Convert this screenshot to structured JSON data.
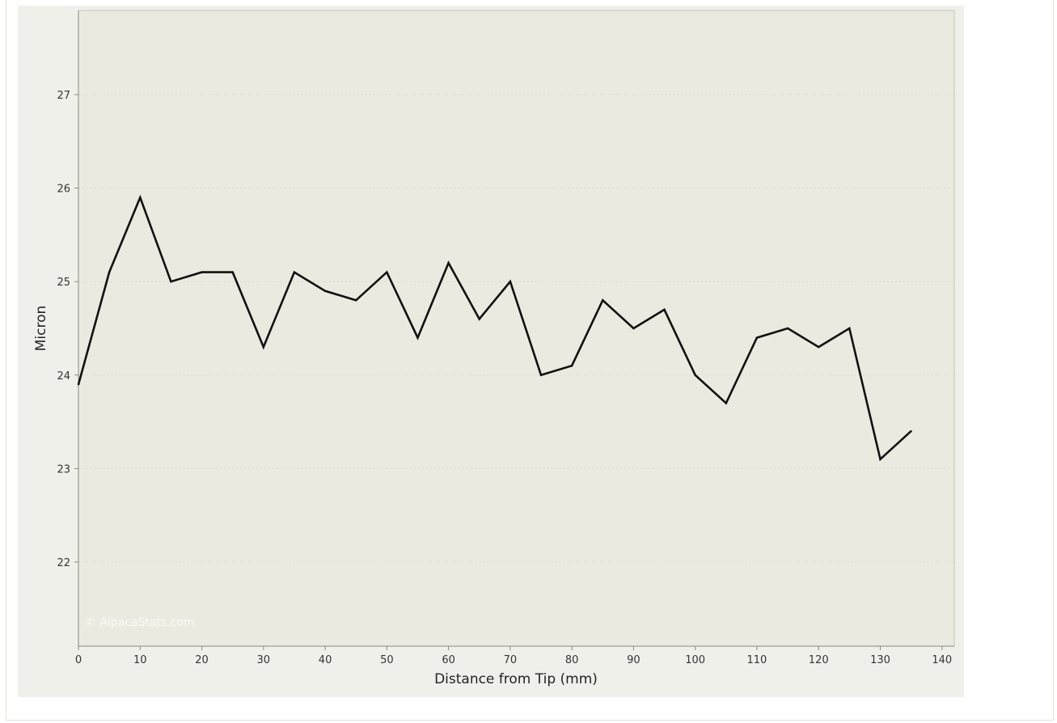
{
  "chart_data": {
    "type": "line",
    "title": "",
    "xlabel": "Distance from Tip (mm)",
    "ylabel": "Micron",
    "xlim": [
      0,
      142
    ],
    "ylim": [
      21.1,
      27.9
    ],
    "x_ticks": [
      0,
      10,
      20,
      30,
      40,
      50,
      60,
      70,
      80,
      90,
      100,
      110,
      120,
      130,
      140
    ],
    "y_ticks": [
      22,
      23,
      24,
      25,
      26,
      27
    ],
    "grid": true,
    "series": [
      {
        "x": [
          0,
          5,
          10,
          15,
          20,
          25,
          30,
          35,
          40,
          45,
          50,
          55,
          60,
          65,
          70,
          75,
          80,
          85,
          90,
          95,
          100,
          105,
          110,
          115,
          120,
          125,
          130,
          135
        ],
        "values": [
          23.9,
          25.1,
          25.9,
          25.0,
          25.1,
          25.1,
          24.3,
          25.1,
          24.9,
          24.8,
          25.1,
          24.4,
          25.2,
          24.6,
          25.0,
          24.0,
          24.1,
          24.8,
          24.5,
          24.7,
          24.0,
          23.7,
          24.4,
          24.5,
          24.3,
          24.5,
          23.1,
          23.4
        ],
        "color": "#111111"
      }
    ],
    "watermark": "© AlpacaStats.com",
    "colors": {
      "plot_background": "#eaeae1",
      "panel_background": "#f0f0eb",
      "gridline": "#d9d9cf",
      "axis": "#8a8a80"
    }
  }
}
